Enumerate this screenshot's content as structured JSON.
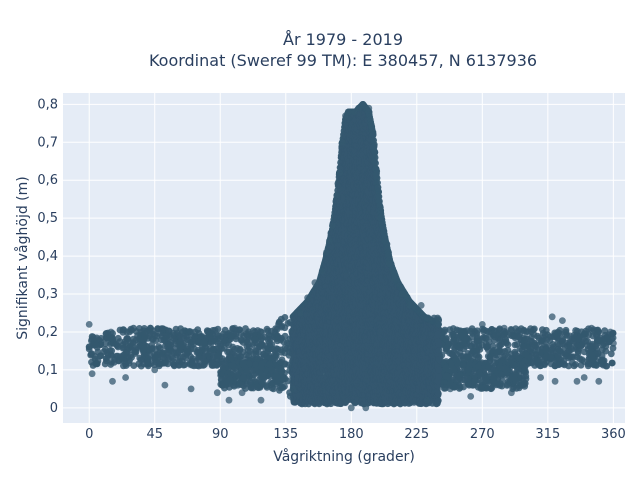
{
  "chart_data": {
    "type": "scatter",
    "title": "År 1979 - 2019",
    "subtitle": "Koordinat (Sweref 99 TM): E 380457, N 6137936",
    "xlabel": "Vågriktning (grader)",
    "ylabel": "Signifikant våghöjd (m)",
    "xlim": [
      -18,
      368
    ],
    "ylim": [
      -0.04,
      0.83
    ],
    "x_ticks": [
      0,
      45,
      90,
      135,
      180,
      225,
      270,
      315,
      360
    ],
    "x_tick_labels": [
      "0",
      "45",
      "90",
      "135",
      "180",
      "225",
      "270",
      "315",
      "360"
    ],
    "y_ticks": [
      0,
      0.1,
      0.2,
      0.3,
      0.4,
      0.5,
      0.6,
      0.7,
      0.8
    ],
    "y_tick_labels": [
      "0",
      "0,1",
      "0,2",
      "0,3",
      "0,4",
      "0,5",
      "0,6",
      "0,7",
      "0,8"
    ],
    "grid": true,
    "legend": false,
    "marker_color": "#34586f",
    "background_color": "#e5ecf6",
    "series": [
      {
        "points": [
          {
            "x": 0,
            "y": 0.22
          },
          {
            "x": 0,
            "y": 0.16
          },
          {
            "x": 2,
            "y": 0.09
          },
          {
            "x": 5,
            "y": 0.18
          },
          {
            "x": 12,
            "y": 0.13
          },
          {
            "x": 15,
            "y": 0.2
          },
          {
            "x": 16,
            "y": 0.07
          },
          {
            "x": 25,
            "y": 0.08
          },
          {
            "x": 30,
            "y": 0.16
          },
          {
            "x": 40,
            "y": 0.12
          },
          {
            "x": 42,
            "y": 0.21
          },
          {
            "x": 45,
            "y": 0.1
          },
          {
            "x": 52,
            "y": 0.06
          },
          {
            "x": 62,
            "y": 0.15
          },
          {
            "x": 70,
            "y": 0.2
          },
          {
            "x": 70,
            "y": 0.05
          },
          {
            "x": 78,
            "y": 0.13
          },
          {
            "x": 86,
            "y": 0.18
          },
          {
            "x": 88,
            "y": 0.04
          },
          {
            "x": 92,
            "y": 0.1
          },
          {
            "x": 96,
            "y": 0.02
          },
          {
            "x": 100,
            "y": 0.21
          },
          {
            "x": 105,
            "y": 0.04
          },
          {
            "x": 110,
            "y": 0.16
          },
          {
            "x": 118,
            "y": 0.02
          },
          {
            "x": 125,
            "y": 0.1
          },
          {
            "x": 130,
            "y": 0.22
          },
          {
            "x": 140,
            "y": 0.05
          },
          {
            "x": 145,
            "y": 0.25
          },
          {
            "x": 150,
            "y": 0.29
          },
          {
            "x": 155,
            "y": 0.33
          },
          {
            "x": 160,
            "y": 0.36
          },
          {
            "x": 163,
            "y": 0.41
          },
          {
            "x": 165,
            "y": 0.44
          },
          {
            "x": 167,
            "y": 0.48
          },
          {
            "x": 170,
            "y": 0.56
          },
          {
            "x": 172,
            "y": 0.62
          },
          {
            "x": 174,
            "y": 0.7
          },
          {
            "x": 176,
            "y": 0.77
          },
          {
            "x": 178,
            "y": 0.78
          },
          {
            "x": 180,
            "y": 0.0
          },
          {
            "x": 182,
            "y": 0.78
          },
          {
            "x": 185,
            "y": 0.79
          },
          {
            "x": 188,
            "y": 0.8
          },
          {
            "x": 190,
            "y": 0.0
          },
          {
            "x": 192,
            "y": 0.79
          },
          {
            "x": 194,
            "y": 0.74
          },
          {
            "x": 196,
            "y": 0.65
          },
          {
            "x": 198,
            "y": 0.58
          },
          {
            "x": 200,
            "y": 0.5
          },
          {
            "x": 203,
            "y": 0.44
          },
          {
            "x": 206,
            "y": 0.38
          },
          {
            "x": 210,
            "y": 0.34
          },
          {
            "x": 215,
            "y": 0.3
          },
          {
            "x": 220,
            "y": 0.27
          },
          {
            "x": 228,
            "y": 0.27
          },
          {
            "x": 232,
            "y": 0.02
          },
          {
            "x": 240,
            "y": 0.23
          },
          {
            "x": 248,
            "y": 0.05
          },
          {
            "x": 255,
            "y": 0.19
          },
          {
            "x": 262,
            "y": 0.03
          },
          {
            "x": 270,
            "y": 0.22
          },
          {
            "x": 278,
            "y": 0.1
          },
          {
            "x": 285,
            "y": 0.21
          },
          {
            "x": 290,
            "y": 0.04
          },
          {
            "x": 300,
            "y": 0.14
          },
          {
            "x": 310,
            "y": 0.08
          },
          {
            "x": 318,
            "y": 0.24
          },
          {
            "x": 320,
            "y": 0.07
          },
          {
            "x": 325,
            "y": 0.23
          },
          {
            "x": 330,
            "y": 0.19
          },
          {
            "x": 335,
            "y": 0.07
          },
          {
            "x": 340,
            "y": 0.08
          },
          {
            "x": 345,
            "y": 0.21
          },
          {
            "x": 350,
            "y": 0.07
          },
          {
            "x": 355,
            "y": 0.11
          },
          {
            "x": 358,
            "y": 0.2
          },
          {
            "x": 360,
            "y": 0.17
          }
        ],
        "density_bands": [
          {
            "x_range": [
              0,
              130
            ],
            "y_range": [
              0.11,
              0.21
            ]
          },
          {
            "x_range": [
              130,
              240
            ],
            "y_range": [
              0.02,
              0.24
            ]
          },
          {
            "x_range": [
              240,
              360
            ],
            "y_range": [
              0.11,
              0.21
            ]
          },
          {
            "x_range": [
              90,
              135
            ],
            "y_range": [
              0.05,
              0.12
            ]
          },
          {
            "x_range": [
              225,
              300
            ],
            "y_range": [
              0.05,
              0.12
            ]
          }
        ],
        "peak_envelope": [
          {
            "x": 140,
            "y_max": 0.24
          },
          {
            "x": 150,
            "y_max": 0.28
          },
          {
            "x": 158,
            "y_max": 0.33
          },
          {
            "x": 163,
            "y_max": 0.4
          },
          {
            "x": 167,
            "y_max": 0.47
          },
          {
            "x": 170,
            "y_max": 0.55
          },
          {
            "x": 172,
            "y_max": 0.62
          },
          {
            "x": 174,
            "y_max": 0.7
          },
          {
            "x": 176,
            "y_max": 0.76
          },
          {
            "x": 178,
            "y_max": 0.78
          },
          {
            "x": 183,
            "y_max": 0.78
          },
          {
            "x": 188,
            "y_max": 0.8
          },
          {
            "x": 192,
            "y_max": 0.78
          },
          {
            "x": 195,
            "y_max": 0.72
          },
          {
            "x": 197,
            "y_max": 0.63
          },
          {
            "x": 200,
            "y_max": 0.52
          },
          {
            "x": 203,
            "y_max": 0.45
          },
          {
            "x": 207,
            "y_max": 0.38
          },
          {
            "x": 212,
            "y_max": 0.33
          },
          {
            "x": 220,
            "y_max": 0.28
          },
          {
            "x": 230,
            "y_max": 0.24
          },
          {
            "x": 240,
            "y_max": 0.22
          }
        ]
      }
    ]
  }
}
